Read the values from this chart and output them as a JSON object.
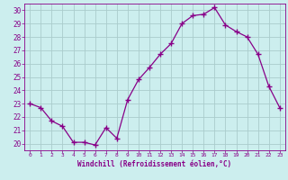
{
  "x": [
    0,
    1,
    2,
    3,
    4,
    5,
    6,
    7,
    8,
    9,
    10,
    11,
    12,
    13,
    14,
    15,
    16,
    17,
    18,
    19,
    20,
    21,
    22,
    23
  ],
  "y": [
    23.0,
    22.7,
    21.7,
    21.3,
    20.1,
    20.1,
    19.9,
    21.2,
    20.4,
    23.3,
    24.8,
    25.7,
    26.7,
    27.5,
    29.0,
    29.6,
    29.7,
    30.2,
    28.9,
    28.4,
    28.0,
    26.7,
    24.3,
    22.7
  ],
  "line_color": "#880088",
  "marker": "+",
  "marker_size": 4,
  "marker_linewidth": 1.0,
  "line_width": 0.9,
  "bg_color": "#cceeee",
  "grid_color": "#aacccc",
  "tick_color": "#880088",
  "label_color": "#880088",
  "xlabel": "Windchill (Refroidissement éolien,°C)",
  "xlim": [
    -0.5,
    23.5
  ],
  "ylim": [
    19.5,
    30.5
  ],
  "yticks": [
    20,
    21,
    22,
    23,
    24,
    25,
    26,
    27,
    28,
    29,
    30
  ],
  "xticks": [
    0,
    1,
    2,
    3,
    4,
    5,
    6,
    7,
    8,
    9,
    10,
    11,
    12,
    13,
    14,
    15,
    16,
    17,
    18,
    19,
    20,
    21,
    22,
    23
  ]
}
